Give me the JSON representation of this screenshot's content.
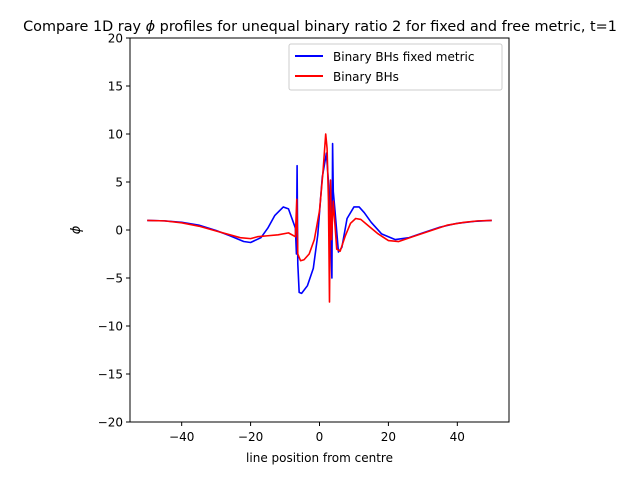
{
  "chart_data": {
    "type": "line",
    "title_parts": [
      "Compare 1D ray ",
      "ϕ",
      " profiles for unequal binary ratio 2 for fixed and free metric, t=1"
    ],
    "xlabel": "line position from centre",
    "ylabel": "ϕ",
    "xlim": [
      -55,
      55
    ],
    "ylim": [
      -20,
      20
    ],
    "xticks": [
      -40,
      -20,
      0,
      20,
      40
    ],
    "yticks": [
      -20,
      -15,
      -10,
      -5,
      0,
      5,
      10,
      15,
      20
    ],
    "grid": false,
    "legend_position": "top-right",
    "series": [
      {
        "name": "Binary BHs fixed metric",
        "color": "#0000ff",
        "points": [
          [
            -50,
            1.0
          ],
          [
            -45,
            0.95
          ],
          [
            -40,
            0.8
          ],
          [
            -35,
            0.5
          ],
          [
            -30,
            -0.05
          ],
          [
            -26,
            -0.6
          ],
          [
            -22,
            -1.2
          ],
          [
            -20,
            -1.3
          ],
          [
            -17,
            -0.8
          ],
          [
            -15,
            0.2
          ],
          [
            -13,
            1.5
          ],
          [
            -10.5,
            2.4
          ],
          [
            -9,
            2.2
          ],
          [
            -8,
            1.2
          ],
          [
            -7,
            0.2
          ],
          [
            -6.7,
            -2.5
          ],
          [
            -6.5,
            6.7
          ],
          [
            -6.3,
            -3.5
          ],
          [
            -5.9,
            -6.5
          ],
          [
            -5.2,
            -6.6
          ],
          [
            -3.5,
            -5.8
          ],
          [
            -1.8,
            -4.0
          ],
          [
            -0.5,
            -0.5
          ],
          [
            0.8,
            5.5
          ],
          [
            2.0,
            8.0
          ],
          [
            2.8,
            4.0
          ],
          [
            3.3,
            -1.0
          ],
          [
            3.6,
            -5.0
          ],
          [
            3.8,
            9.0
          ],
          [
            4.0,
            4.0
          ],
          [
            4.5,
            2.0
          ],
          [
            5.5,
            -2.3
          ],
          [
            6.5,
            -1.8
          ],
          [
            8,
            1.2
          ],
          [
            10,
            2.4
          ],
          [
            11.5,
            2.4
          ],
          [
            13,
            1.8
          ],
          [
            15,
            0.8
          ],
          [
            18,
            -0.4
          ],
          [
            22,
            -1.0
          ],
          [
            26,
            -0.8
          ],
          [
            30,
            -0.3
          ],
          [
            35,
            0.3
          ],
          [
            40,
            0.7
          ],
          [
            45,
            0.9
          ],
          [
            50,
            1.0
          ]
        ]
      },
      {
        "name": "Binary BHs",
        "color": "#ff0000",
        "points": [
          [
            -50,
            1.0
          ],
          [
            -45,
            0.95
          ],
          [
            -40,
            0.75
          ],
          [
            -35,
            0.4
          ],
          [
            -30,
            -0.1
          ],
          [
            -26,
            -0.5
          ],
          [
            -23,
            -0.8
          ],
          [
            -20,
            -0.9
          ],
          [
            -18,
            -0.7
          ],
          [
            -15,
            -0.6
          ],
          [
            -12,
            -0.5
          ],
          [
            -9,
            -0.3
          ],
          [
            -7,
            -0.7
          ],
          [
            -6.6,
            3.2
          ],
          [
            -6.3,
            -2.5
          ],
          [
            -5.5,
            -3.2
          ],
          [
            -4.5,
            -3.1
          ],
          [
            -3,
            -2.5
          ],
          [
            -1.5,
            -1.0
          ],
          [
            0,
            2.0
          ],
          [
            1.0,
            6.0
          ],
          [
            1.8,
            10.0
          ],
          [
            2.2,
            8.5
          ],
          [
            2.6,
            3.0
          ],
          [
            2.9,
            -7.5
          ],
          [
            3.2,
            5.2
          ],
          [
            3.5,
            -1.0
          ],
          [
            4.0,
            3.0
          ],
          [
            5.0,
            -2.0
          ],
          [
            6.0,
            -2.2
          ],
          [
            7.5,
            -0.6
          ],
          [
            9,
            0.7
          ],
          [
            10.5,
            1.2
          ],
          [
            12,
            1.1
          ],
          [
            14,
            0.5
          ],
          [
            17,
            -0.4
          ],
          [
            20,
            -1.1
          ],
          [
            23,
            -1.2
          ],
          [
            27,
            -0.7
          ],
          [
            32,
            -0.1
          ],
          [
            37,
            0.5
          ],
          [
            42,
            0.8
          ],
          [
            46,
            0.95
          ],
          [
            50,
            1.0
          ]
        ]
      }
    ]
  }
}
